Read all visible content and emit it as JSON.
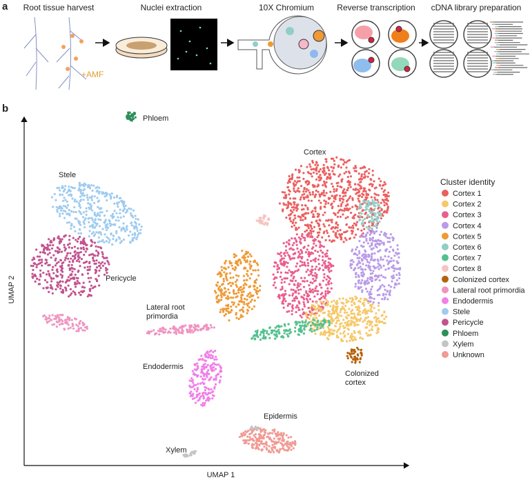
{
  "panel_a": {
    "label": "a",
    "steps": [
      "Root tissue harvest",
      "Nuclei extraction",
      "10X Chromium",
      "Reverse transcription",
      "cDNA library preparation"
    ],
    "annotation": "+AMF"
  },
  "panel_b": {
    "label": "b",
    "x_label": "UMAP 1",
    "y_label": "UMAP 2",
    "legend_title": "Cluster identity",
    "clusters": [
      {
        "name": "Cortex 1",
        "color": "#ec5f5f"
      },
      {
        "name": "Cortex 2",
        "color": "#f6c86a"
      },
      {
        "name": "Cortex 3",
        "color": "#e95f8c"
      },
      {
        "name": "Cortex 4",
        "color": "#b99be8"
      },
      {
        "name": "Cortex 5",
        "color": "#ef9a35"
      },
      {
        "name": "Cortex 6",
        "color": "#93cdc7"
      },
      {
        "name": "Cortex 7",
        "color": "#55c08f"
      },
      {
        "name": "Cortex 8",
        "color": "#f6c4c0"
      },
      {
        "name": "Colonized cortex",
        "color": "#b5620f"
      },
      {
        "name": "Lateral root primordia",
        "color": "#ef94c0"
      },
      {
        "name": "Endodermis",
        "color": "#f080e8"
      },
      {
        "name": "Stele",
        "color": "#9fcbf0"
      },
      {
        "name": "Pericycle",
        "color": "#c1548f"
      },
      {
        "name": "Phloem",
        "color": "#2f8f5a"
      },
      {
        "name": "Xylem",
        "color": "#c4c4c4"
      },
      {
        "name": "Unknown",
        "color": "#f19a94"
      }
    ],
    "annotations": [
      {
        "lines": [
          "Phloem"
        ]
      },
      {
        "lines": [
          "Stele"
        ]
      },
      {
        "lines": [
          "Pericycle"
        ]
      },
      {
        "lines": [
          "Cortex"
        ]
      },
      {
        "lines": [
          "Lateral root",
          "primordia"
        ]
      },
      {
        "lines": [
          "Endodermis"
        ]
      },
      {
        "lines": [
          "Colonized",
          "cortex"
        ]
      },
      {
        "lines": [
          "Epidermis"
        ]
      },
      {
        "lines": [
          "Xylem"
        ]
      }
    ]
  }
}
